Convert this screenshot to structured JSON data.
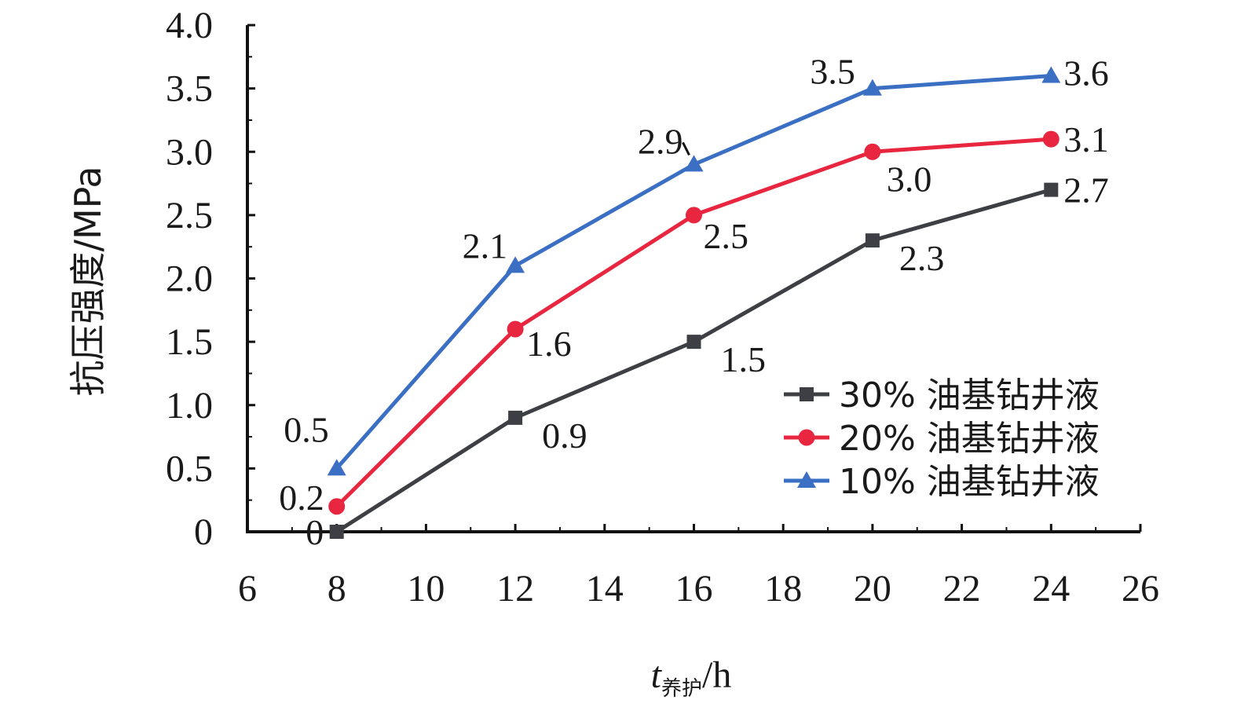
{
  "chart_data": {
    "type": "line",
    "title": "",
    "ylabel": "抗压强度/MPa",
    "xlabel_main": "t",
    "xlabel_sub": "养护",
    "xlabel_unit": "/h",
    "xlim": [
      6,
      26
    ],
    "ylim": [
      0,
      4.0
    ],
    "x_ticks": [
      "6",
      "8",
      "10",
      "12",
      "14",
      "16",
      "18",
      "20",
      "22",
      "24",
      "26"
    ],
    "y_ticks": [
      "0",
      "0.5",
      "1.0",
      "1.5",
      "2.0",
      "2.5",
      "3.0",
      "3.5",
      "4.0"
    ],
    "grid": false,
    "legend_position": "bottom-right",
    "x": [
      8,
      12,
      16,
      20,
      24
    ],
    "series": [
      {
        "name": "30% 油基钻井液",
        "marker": "square",
        "color": "#3d3f44",
        "values": [
          0,
          0.9,
          1.5,
          2.3,
          2.7
        ],
        "labels": [
          "0",
          "0.9",
          "1.5",
          "2.3",
          "2.7"
        ]
      },
      {
        "name": "20% 油基钻井液",
        "marker": "circle",
        "color": "#e8263f",
        "values": [
          0.2,
          1.6,
          2.5,
          3.0,
          3.1
        ],
        "labels": [
          "0.2",
          "1.6",
          "2.5",
          "3.0",
          "3.1"
        ]
      },
      {
        "name": "10% 油基钻井液",
        "marker": "triangle",
        "color": "#3a6fc3",
        "values": [
          0.5,
          2.1,
          2.9,
          3.5,
          3.6
        ],
        "labels": [
          "0.5",
          "2.1",
          "2.9",
          "3.5",
          "3.6"
        ]
      }
    ]
  }
}
